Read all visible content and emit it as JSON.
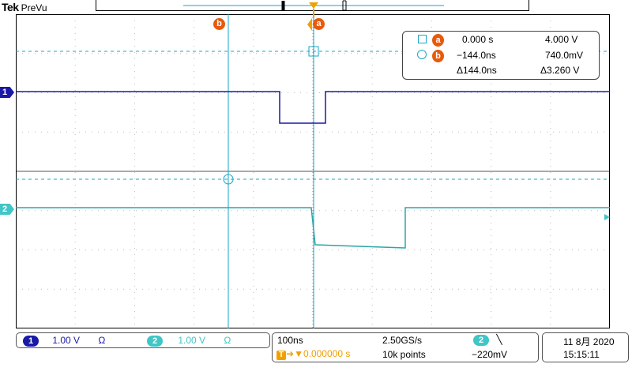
{
  "header": {
    "brand": "Tek",
    "mode": "PreVu"
  },
  "cursors": {
    "a_label": "a",
    "b_label": "b",
    "trigger_label": "T"
  },
  "readout": {
    "a_time": "0.000 s",
    "a_volt": "4.000 V",
    "b_time": "−144.0ns",
    "b_volt": "740.0mV",
    "delta_time": "Δ144.0ns",
    "delta_volt": "Δ3.260 V"
  },
  "channel_markers": {
    "ch1": "1",
    "ch2": "2"
  },
  "channels": [
    {
      "num": "1",
      "scale": "1.00 V",
      "coupling": "Ω",
      "color": "#1a1aa6"
    },
    {
      "num": "2",
      "scale": "1.00 V",
      "coupling": "Ω",
      "color": "#3fc6c6"
    }
  ],
  "timebase": {
    "horizontal_scale": "100ns",
    "sample_rate": "2.50GS/s",
    "trigger_position": "▼0.000000 s",
    "record_length": "10k points",
    "trigger_channel": "2",
    "trigger_slope": "╲",
    "trigger_level": "−220mV"
  },
  "datetime": {
    "date": "11 8月 2020",
    "time": "15:15:11"
  },
  "colors": {
    "ch1": "#1a1aa6",
    "ch2": "#3fc6c6",
    "cursor_a": "#e8590c",
    "cursor_line": "#1aa5c9",
    "trigger": "#f0a000"
  }
}
